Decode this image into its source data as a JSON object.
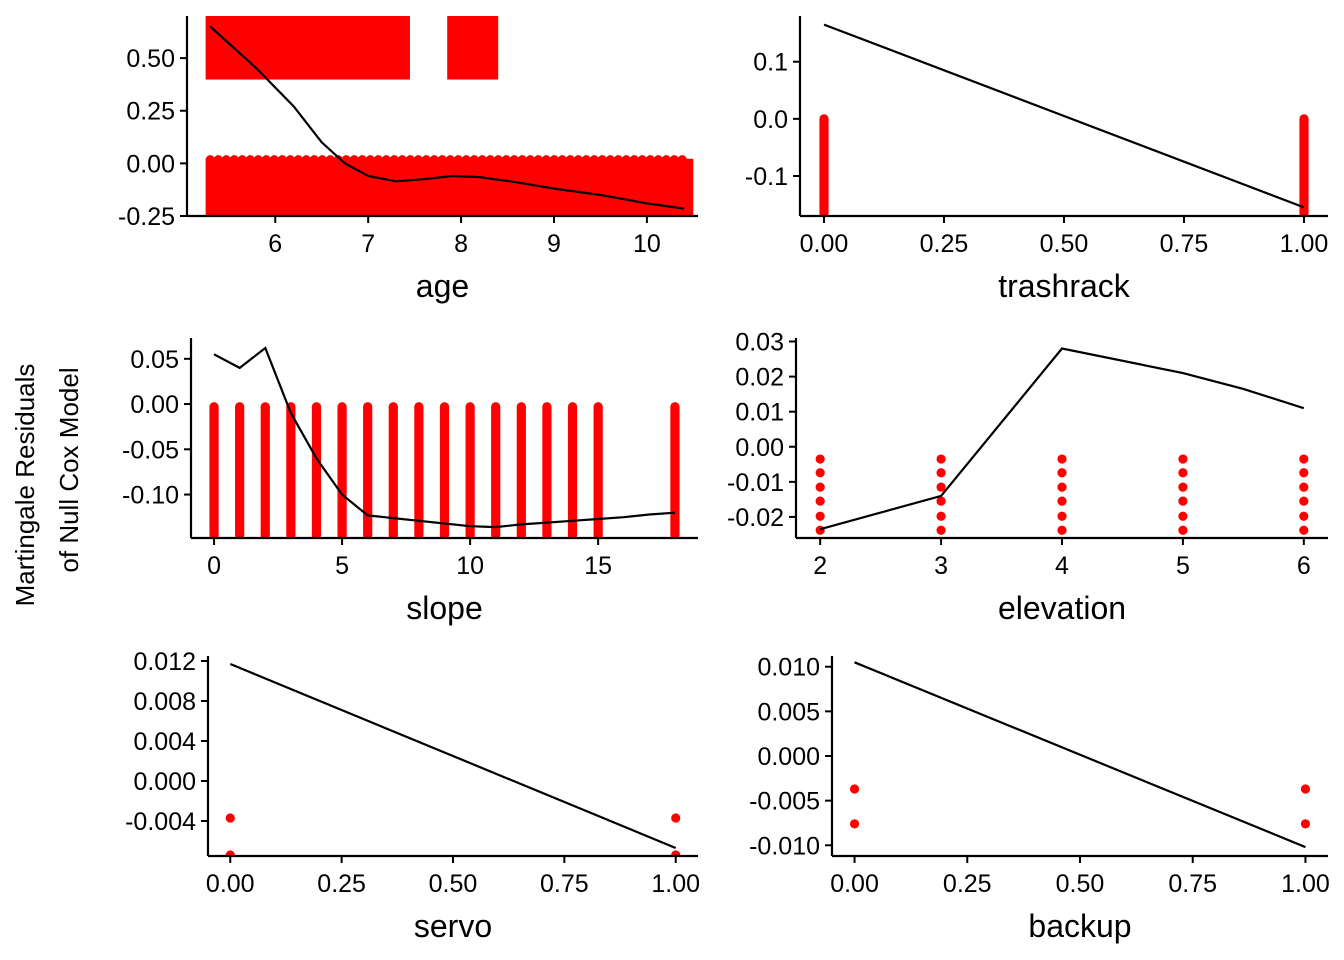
{
  "figure": {
    "ylabel_lines": [
      "Martingale Residuals",
      "of Null Cox Model"
    ],
    "point_color": "#ff0000",
    "line_color": "#000000"
  },
  "chart_data": [
    {
      "type": "scatter",
      "xlabel": "age",
      "xlim": [
        5.05,
        10.55
      ],
      "ylim": [
        -0.25,
        0.7
      ],
      "xticks": [
        6,
        7,
        8,
        9,
        10
      ],
      "xtick_labels": [
        "6",
        "7",
        "8",
        "9",
        "10"
      ],
      "yticks": [
        -0.25,
        0,
        0.25,
        0.5
      ],
      "ytick_labels": [
        "-0.25",
        "0.00",
        "0.25",
        "0.50"
      ],
      "point_bands": [
        {
          "x_from": 5.3,
          "x_to": 10.45,
          "y_from": -0.24,
          "y_to": 0.0
        },
        {
          "x_from": 5.3,
          "x_to": 7.4,
          "y_from": 0.42,
          "y_to": 0.69
        },
        {
          "x_from": 7.9,
          "x_to": 8.35,
          "y_from": 0.42,
          "y_to": 0.69
        }
      ],
      "smooth": {
        "x": [
          5.3,
          5.8,
          6.2,
          6.5,
          6.75,
          7.0,
          7.3,
          7.6,
          7.9,
          8.2,
          8.6,
          9.0,
          9.5,
          10.0,
          10.4
        ],
        "y": [
          0.65,
          0.45,
          0.27,
          0.1,
          0.0,
          -0.06,
          -0.085,
          -0.075,
          -0.06,
          -0.065,
          -0.09,
          -0.12,
          -0.15,
          -0.19,
          -0.215
        ]
      }
    },
    {
      "type": "scatter",
      "xlabel": "trashrack",
      "xlim": [
        -0.05,
        1.05
      ],
      "ylim": [
        -0.17,
        0.18
      ],
      "xticks": [
        0,
        0.25,
        0.5,
        0.75,
        1
      ],
      "xtick_labels": [
        "0.00",
        "0.25",
        "0.50",
        "0.75",
        "1.00"
      ],
      "yticks": [
        -0.1,
        0,
        0.1
      ],
      "ytick_labels": [
        "-0.1",
        "0.0",
        "0.1"
      ],
      "point_bands": [
        {
          "x_from": 0,
          "x_to": 0,
          "y_from": -0.165,
          "y_to": 0.0
        },
        {
          "x_from": 1,
          "x_to": 1,
          "y_from": -0.165,
          "y_to": 0.0
        }
      ],
      "smooth": {
        "x": [
          0,
          1
        ],
        "y": [
          0.165,
          -0.155
        ]
      }
    },
    {
      "type": "scatter",
      "xlabel": "slope",
      "xlim": [
        -0.9,
        18.9
      ],
      "ylim": [
        -0.148,
        0.073
      ],
      "xticks": [
        0,
        5,
        10,
        15
      ],
      "xtick_labels": [
        "0",
        "5",
        "10",
        "15"
      ],
      "yticks": [
        -0.1,
        -0.05,
        0,
        0.05
      ],
      "ytick_labels": [
        "-0.10",
        "-0.05",
        "0.00",
        "0.05"
      ],
      "point_x": [
        0,
        1,
        2,
        3,
        4,
        5,
        6,
        7,
        8,
        9,
        10,
        11,
        12,
        13,
        14,
        15,
        18
      ],
      "point_y_range": [
        -0.145,
        -0.003
      ],
      "smooth": {
        "x": [
          0,
          1,
          2,
          3,
          4,
          5,
          6,
          7,
          8,
          9,
          10,
          11,
          12,
          13,
          14,
          15,
          16,
          17,
          18
        ],
        "y": [
          0.055,
          0.04,
          0.062,
          -0.01,
          -0.06,
          -0.1,
          -0.123,
          -0.126,
          -0.129,
          -0.132,
          -0.135,
          -0.136,
          -0.133,
          -0.131,
          -0.129,
          -0.127,
          -0.125,
          -0.122,
          -0.12
        ]
      }
    },
    {
      "type": "scatter",
      "xlabel": "elevation",
      "xlim": [
        1.8,
        6.2
      ],
      "ylim": [
        -0.026,
        0.031
      ],
      "xticks": [
        2,
        3,
        4,
        5,
        6
      ],
      "xtick_labels": [
        "2",
        "3",
        "4",
        "5",
        "6"
      ],
      "yticks": [
        -0.02,
        -0.01,
        0,
        0.01,
        0.02,
        0.03
      ],
      "ytick_labels": [
        "-0.02",
        "-0.01",
        "0.00",
        "0.01",
        "0.02",
        "0.03"
      ],
      "point_x": [
        2,
        3,
        4,
        5,
        6
      ],
      "point_y": [
        -0.0035,
        -0.0074,
        -0.0115,
        -0.0155,
        -0.0198,
        -0.0238
      ],
      "smooth": {
        "x": [
          2,
          3,
          4,
          5,
          5.5,
          6
        ],
        "y": [
          -0.0235,
          -0.014,
          0.028,
          0.021,
          0.0165,
          0.011
        ]
      }
    },
    {
      "type": "scatter",
      "xlabel": "servo",
      "xlim": [
        -0.05,
        1.05
      ],
      "ylim": [
        -0.0075,
        0.0125
      ],
      "xticks": [
        0,
        0.25,
        0.5,
        0.75,
        1
      ],
      "xtick_labels": [
        "0.00",
        "0.25",
        "0.50",
        "0.75",
        "1.00"
      ],
      "yticks": [
        -0.004,
        0,
        0.004,
        0.008,
        0.012
      ],
      "ytick_labels": [
        "-0.004",
        "0.000",
        "0.004",
        "0.008",
        "0.012"
      ],
      "points": [
        {
          "x": 0,
          "y": -0.0037
        },
        {
          "x": 0,
          "y": -0.0074
        },
        {
          "x": 1,
          "y": -0.0037
        },
        {
          "x": 1,
          "y": -0.0074
        }
      ],
      "smooth": {
        "x": [
          0,
          1
        ],
        "y": [
          0.0117,
          -0.0067
        ]
      }
    },
    {
      "type": "scatter",
      "xlabel": "backup",
      "xlim": [
        -0.05,
        1.05
      ],
      "ylim": [
        -0.0112,
        0.0112
      ],
      "xticks": [
        0,
        0.25,
        0.5,
        0.75,
        1
      ],
      "xtick_labels": [
        "0.00",
        "0.25",
        "0.50",
        "0.75",
        "1.00"
      ],
      "yticks": [
        -0.01,
        -0.005,
        0,
        0.005,
        0.01
      ],
      "ytick_labels": [
        "-0.010",
        "-0.005",
        "0.000",
        "0.005",
        "0.010"
      ],
      "points": [
        {
          "x": 0,
          "y": -0.0037
        },
        {
          "x": 0,
          "y": -0.0076
        },
        {
          "x": 1,
          "y": -0.0037
        },
        {
          "x": 1,
          "y": -0.0076
        }
      ],
      "smooth": {
        "x": [
          0,
          1
        ],
        "y": [
          0.0105,
          -0.0102
        ]
      }
    }
  ]
}
